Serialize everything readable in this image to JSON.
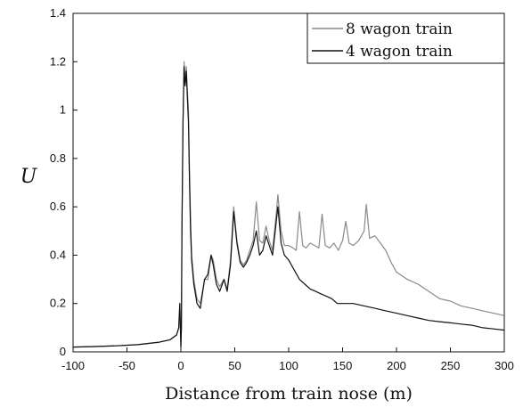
{
  "chart_data": {
    "type": "line",
    "title": "",
    "xlabel": "Distance from train nose (m)",
    "ylabel": "U",
    "xlim": [
      -100,
      300
    ],
    "ylim": [
      0,
      1.4
    ],
    "xticks": [
      -100,
      -50,
      0,
      50,
      100,
      150,
      200,
      250,
      300
    ],
    "yticks": [
      0,
      0.2,
      0.4,
      0.6,
      0.8,
      1,
      1.2,
      1.4
    ],
    "xtick_labels": [
      "-100",
      "-50",
      "0",
      "50",
      "100",
      "150",
      "200",
      "250",
      "300"
    ],
    "ytick_labels": [
      "0",
      "0.2",
      "0.4",
      "0.6",
      "0.8",
      "1",
      "1.2",
      "1.4"
    ],
    "grid": false,
    "legend_position": "top-right",
    "series": [
      {
        "name": "8 wagon train",
        "color": "#8a8a8a",
        "points": [
          [
            -100,
            0.02
          ],
          [
            -80,
            0.022
          ],
          [
            -60,
            0.025
          ],
          [
            -40,
            0.03
          ],
          [
            -20,
            0.04
          ],
          [
            -10,
            0.05
          ],
          [
            -4,
            0.07
          ],
          [
            -2,
            0.1
          ],
          [
            -1,
            0.2
          ],
          [
            0,
            0.02
          ],
          [
            0.5,
            0.1
          ],
          [
            1,
            0.5
          ],
          [
            2,
            0.95
          ],
          [
            3,
            1.2
          ],
          [
            4,
            1.12
          ],
          [
            5,
            1.18
          ],
          [
            6,
            1.08
          ],
          [
            7,
            1.0
          ],
          [
            8,
            0.75
          ],
          [
            9,
            0.55
          ],
          [
            10,
            0.4
          ],
          [
            12,
            0.3
          ],
          [
            15,
            0.22
          ],
          [
            18,
            0.2
          ],
          [
            20,
            0.25
          ],
          [
            22,
            0.3
          ],
          [
            25,
            0.3
          ],
          [
            28,
            0.4
          ],
          [
            30,
            0.38
          ],
          [
            33,
            0.3
          ],
          [
            36,
            0.27
          ],
          [
            40,
            0.3
          ],
          [
            43,
            0.26
          ],
          [
            46,
            0.38
          ],
          [
            49,
            0.6
          ],
          [
            52,
            0.46
          ],
          [
            55,
            0.38
          ],
          [
            58,
            0.36
          ],
          [
            61,
            0.38
          ],
          [
            64,
            0.42
          ],
          [
            67,
            0.46
          ],
          [
            70,
            0.62
          ],
          [
            73,
            0.46
          ],
          [
            76,
            0.45
          ],
          [
            79,
            0.52
          ],
          [
            82,
            0.46
          ],
          [
            85,
            0.42
          ],
          [
            88,
            0.55
          ],
          [
            90,
            0.65
          ],
          [
            93,
            0.5
          ],
          [
            96,
            0.44
          ],
          [
            100,
            0.44
          ],
          [
            104,
            0.43
          ],
          [
            107,
            0.42
          ],
          [
            110,
            0.58
          ],
          [
            113,
            0.44
          ],
          [
            116,
            0.43
          ],
          [
            120,
            0.45
          ],
          [
            124,
            0.44
          ],
          [
            128,
            0.43
          ],
          [
            131,
            0.57
          ],
          [
            134,
            0.44
          ],
          [
            138,
            0.43
          ],
          [
            142,
            0.45
          ],
          [
            146,
            0.42
          ],
          [
            150,
            0.46
          ],
          [
            153,
            0.54
          ],
          [
            156,
            0.45
          ],
          [
            160,
            0.44
          ],
          [
            165,
            0.46
          ],
          [
            170,
            0.5
          ],
          [
            172,
            0.61
          ],
          [
            175,
            0.47
          ],
          [
            180,
            0.48
          ],
          [
            185,
            0.45
          ],
          [
            190,
            0.42
          ],
          [
            195,
            0.37
          ],
          [
            200,
            0.33
          ],
          [
            210,
            0.3
          ],
          [
            220,
            0.28
          ],
          [
            230,
            0.25
          ],
          [
            240,
            0.22
          ],
          [
            250,
            0.21
          ],
          [
            260,
            0.19
          ],
          [
            270,
            0.18
          ],
          [
            280,
            0.17
          ],
          [
            290,
            0.16
          ],
          [
            300,
            0.15
          ]
        ]
      },
      {
        "name": "4 wagon train",
        "color": "#111111",
        "points": [
          [
            -100,
            0.02
          ],
          [
            -80,
            0.022
          ],
          [
            -60,
            0.025
          ],
          [
            -40,
            0.03
          ],
          [
            -20,
            0.04
          ],
          [
            -10,
            0.05
          ],
          [
            -4,
            0.07
          ],
          [
            -2,
            0.1
          ],
          [
            -1,
            0.2
          ],
          [
            0,
            0.02
          ],
          [
            0.5,
            0.1
          ],
          [
            1,
            0.5
          ],
          [
            2,
            0.95
          ],
          [
            3,
            1.18
          ],
          [
            4,
            1.1
          ],
          [
            5,
            1.16
          ],
          [
            6,
            1.05
          ],
          [
            7,
            0.95
          ],
          [
            8,
            0.7
          ],
          [
            9,
            0.5
          ],
          [
            10,
            0.38
          ],
          [
            12,
            0.28
          ],
          [
            15,
            0.2
          ],
          [
            18,
            0.18
          ],
          [
            20,
            0.24
          ],
          [
            22,
            0.3
          ],
          [
            25,
            0.32
          ],
          [
            28,
            0.4
          ],
          [
            30,
            0.36
          ],
          [
            33,
            0.28
          ],
          [
            36,
            0.25
          ],
          [
            40,
            0.3
          ],
          [
            43,
            0.25
          ],
          [
            46,
            0.36
          ],
          [
            49,
            0.58
          ],
          [
            52,
            0.45
          ],
          [
            55,
            0.37
          ],
          [
            58,
            0.35
          ],
          [
            61,
            0.37
          ],
          [
            64,
            0.4
          ],
          [
            67,
            0.44
          ],
          [
            70,
            0.5
          ],
          [
            73,
            0.4
          ],
          [
            76,
            0.42
          ],
          [
            79,
            0.48
          ],
          [
            82,
            0.44
          ],
          [
            85,
            0.4
          ],
          [
            88,
            0.52
          ],
          [
            90,
            0.6
          ],
          [
            93,
            0.45
          ],
          [
            96,
            0.4
          ],
          [
            100,
            0.38
          ],
          [
            105,
            0.34
          ],
          [
            110,
            0.3
          ],
          [
            115,
            0.28
          ],
          [
            120,
            0.26
          ],
          [
            125,
            0.25
          ],
          [
            130,
            0.24
          ],
          [
            135,
            0.23
          ],
          [
            140,
            0.22
          ],
          [
            145,
            0.2
          ],
          [
            150,
            0.2
          ],
          [
            160,
            0.2
          ],
          [
            170,
            0.19
          ],
          [
            180,
            0.18
          ],
          [
            190,
            0.17
          ],
          [
            200,
            0.16
          ],
          [
            210,
            0.15
          ],
          [
            220,
            0.14
          ],
          [
            230,
            0.13
          ],
          [
            240,
            0.125
          ],
          [
            250,
            0.12
          ],
          [
            260,
            0.115
          ],
          [
            270,
            0.11
          ],
          [
            280,
            0.1
          ],
          [
            290,
            0.095
          ],
          [
            300,
            0.09
          ]
        ]
      }
    ]
  }
}
